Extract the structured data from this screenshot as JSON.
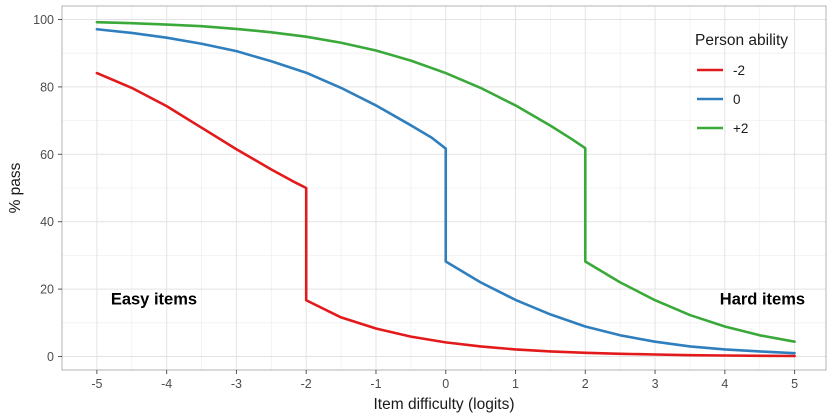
{
  "chart_data": {
    "type": "line",
    "xlabel": "Item difficulty (logits)",
    "ylabel": "% pass",
    "xlim": [
      -5.5,
      5.45
    ],
    "ylim": [
      -4,
      104
    ],
    "xticks": [
      -5,
      -4,
      -3,
      -2,
      -1,
      0,
      1,
      2,
      3,
      4,
      5
    ],
    "yticks": [
      0,
      20,
      40,
      60,
      80,
      100
    ],
    "xtick_labels": [
      "-5",
      "-4",
      "-3",
      "-2",
      "-1",
      "0",
      "1",
      "2",
      "3",
      "4",
      "5"
    ],
    "ytick_labels": [
      "0",
      "20",
      "40",
      "60",
      "80",
      "100"
    ],
    "grid": true,
    "legend": {
      "title": "Person ability",
      "position": "top-right"
    },
    "series": [
      {
        "name": "-2",
        "color": "#e31a1c",
        "points": [
          [
            -5,
            84.1
          ],
          [
            -4.5,
            79.7
          ],
          [
            -4,
            74.3
          ],
          [
            -3.5,
            67.9
          ],
          [
            -3,
            61.5
          ],
          [
            -2.5,
            55.5
          ],
          [
            -2.2,
            52.1
          ],
          [
            -2,
            50.0
          ],
          [
            -2,
            16.7
          ],
          [
            -1.5,
            11.6
          ],
          [
            -1,
            8.3
          ],
          [
            -0.5,
            5.9
          ],
          [
            0,
            4.2
          ],
          [
            0.5,
            3.0
          ],
          [
            1,
            2.1
          ],
          [
            1.5,
            1.5
          ],
          [
            2,
            1.1
          ],
          [
            2.5,
            0.8
          ],
          [
            3,
            0.6
          ],
          [
            3.5,
            0.4
          ],
          [
            4,
            0.3
          ],
          [
            4.5,
            0.2
          ],
          [
            5,
            0.15
          ]
        ]
      },
      {
        "name": "0",
        "color": "#2f7fbe",
        "points": [
          [
            -5,
            97.1
          ],
          [
            -4.5,
            96.0
          ],
          [
            -4,
            94.6
          ],
          [
            -3.5,
            92.8
          ],
          [
            -3,
            90.6
          ],
          [
            -2.5,
            87.6
          ],
          [
            -2,
            84.2
          ],
          [
            -1.5,
            79.7
          ],
          [
            -1,
            74.5
          ],
          [
            -0.5,
            68.6
          ],
          [
            -0.2,
            64.9
          ],
          [
            0,
            61.7
          ],
          [
            0,
            28.2
          ],
          [
            0.5,
            22.0
          ],
          [
            1,
            16.8
          ],
          [
            1.5,
            12.5
          ],
          [
            2,
            8.9
          ],
          [
            2.5,
            6.3
          ],
          [
            3,
            4.4
          ],
          [
            3.5,
            3.0
          ],
          [
            4,
            2.1
          ],
          [
            4.5,
            1.5
          ],
          [
            5,
            1.0
          ]
        ]
      },
      {
        "name": "+2",
        "color": "#3aa93a",
        "points": [
          [
            -5,
            99.2
          ],
          [
            -4.5,
            98.9
          ],
          [
            -4,
            98.5
          ],
          [
            -3.5,
            98.0
          ],
          [
            -3,
            97.2
          ],
          [
            -2.5,
            96.2
          ],
          [
            -2,
            94.9
          ],
          [
            -1.5,
            93.1
          ],
          [
            -1,
            90.8
          ],
          [
            -0.5,
            87.8
          ],
          [
            0,
            84.1
          ],
          [
            0.5,
            79.7
          ],
          [
            1,
            74.5
          ],
          [
            1.5,
            68.5
          ],
          [
            1.8,
            64.6
          ],
          [
            2,
            61.8
          ],
          [
            2,
            28.2
          ],
          [
            2.5,
            22.0
          ],
          [
            3,
            16.7
          ],
          [
            3.5,
            12.3
          ],
          [
            4,
            8.9
          ],
          [
            4.5,
            6.3
          ],
          [
            5,
            4.4
          ]
        ]
      }
    ],
    "annotations": [
      {
        "text": "Easy items",
        "x": -4.8,
        "y": 15.5
      },
      {
        "text": "Hard items",
        "x": 5.15,
        "y": 15.5
      }
    ]
  }
}
